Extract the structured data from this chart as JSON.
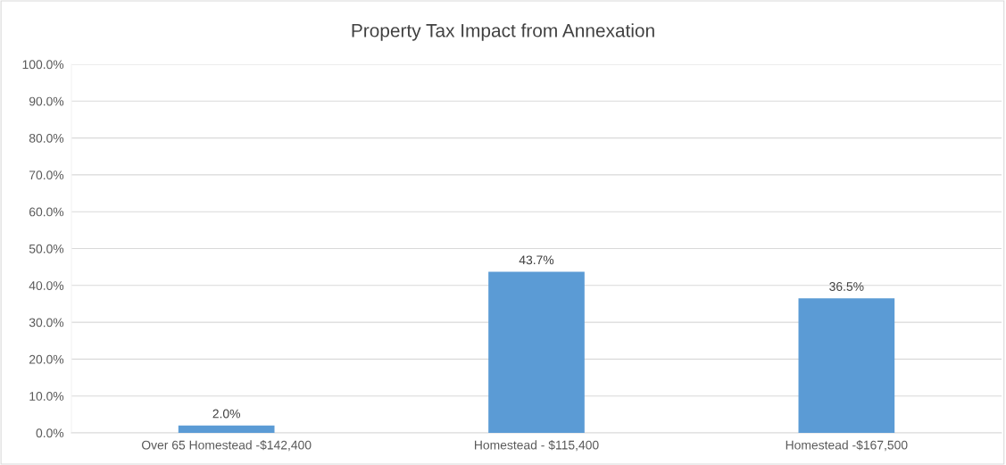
{
  "chart_data": {
    "type": "bar",
    "title": "Property Tax Impact from Annexation",
    "categories": [
      "Over 65 Homestead -$142,400",
      "Homestead - $115,400",
      "Homestead -$167,500"
    ],
    "values": [
      2.0,
      43.7,
      36.5
    ],
    "color": "#5b9bd5",
    "value_labels": [
      "2.0%",
      "43.7%",
      "36.5%"
    ],
    "ylim": [
      0,
      100
    ],
    "yticks": [
      {
        "value": 0,
        "label": "0.0%"
      },
      {
        "value": 10,
        "label": "10.0%"
      },
      {
        "value": 20,
        "label": "20.0%"
      },
      {
        "value": 30,
        "label": "30.0%"
      },
      {
        "value": 40,
        "label": "40.0%"
      },
      {
        "value": 50,
        "label": "50.0%"
      },
      {
        "value": 60,
        "label": "60.0%"
      },
      {
        "value": 70,
        "label": "70.0%"
      },
      {
        "value": 80,
        "label": "80.0%"
      },
      {
        "value": 90,
        "label": "90.0%"
      },
      {
        "value": 100,
        "label": "100.0%"
      }
    ],
    "grid": "y"
  }
}
